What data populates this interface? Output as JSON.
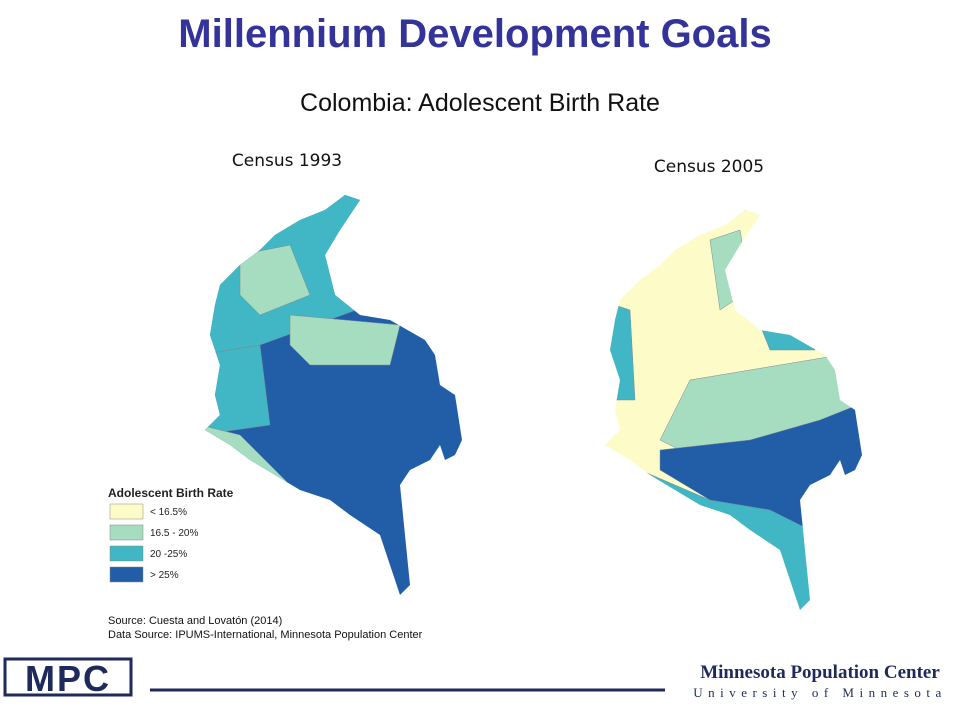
{
  "title": "Millennium Development Goals",
  "subtitle": "Colombia: Adolescent Birth Rate",
  "maps": [
    {
      "label": "Census 1993"
    },
    {
      "label": "Census 2005"
    }
  ],
  "legend": {
    "title": "Adolescent Birth Rate",
    "items": [
      {
        "label": "< 16.5%",
        "color": "#fdfcc8"
      },
      {
        "label": "16.5 - 20%",
        "color": "#a6dcbf"
      },
      {
        "label": "20 -25%",
        "color": "#41b6c4"
      },
      {
        "label": "> 25%",
        "color": "#225ea8"
      }
    ]
  },
  "source": [
    "Source: Cuesta and Lovatón (2014)",
    "Data Source: IPUMS-International,  Minnesota Population Center"
  ],
  "footer": {
    "logo": "MPC",
    "org": "Minnesota Population Center",
    "university": "University of Minnesota"
  }
}
